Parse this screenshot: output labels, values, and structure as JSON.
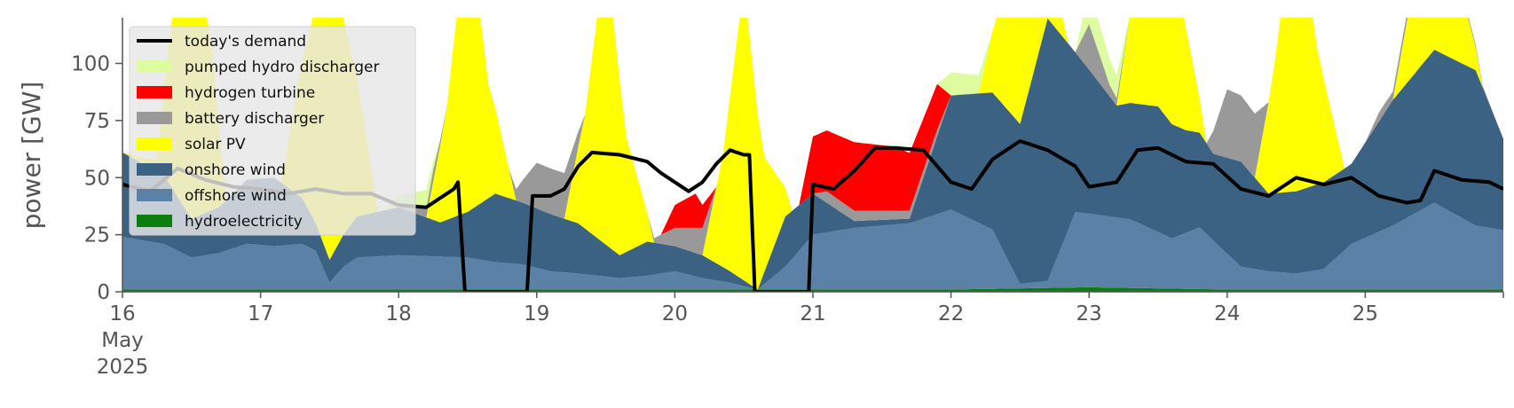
{
  "chart_data": {
    "type": "area",
    "title": "",
    "xlabel": "",
    "ylabel": "power [GW]",
    "ylim": [
      0,
      120
    ],
    "xlim_days": [
      16,
      26
    ],
    "x_unit": "days of May 2025 (fractional day)",
    "yticks": [
      0,
      25,
      50,
      75,
      100
    ],
    "xticks": [
      {
        "x": 16,
        "lines": [
          "16",
          "May",
          "2025"
        ]
      },
      {
        "x": 17,
        "lines": [
          "17"
        ]
      },
      {
        "x": 18,
        "lines": [
          "18"
        ]
      },
      {
        "x": 19,
        "lines": [
          "19"
        ]
      },
      {
        "x": 20,
        "lines": [
          "20"
        ]
      },
      {
        "x": 21,
        "lines": [
          "21"
        ]
      },
      {
        "x": 22,
        "lines": [
          "22"
        ]
      },
      {
        "x": 23,
        "lines": [
          "23"
        ]
      },
      {
        "x": 24,
        "lines": [
          "24"
        ]
      },
      {
        "x": 25,
        "lines": [
          "25"
        ]
      }
    ],
    "legend_position": "top-left",
    "legend": [
      {
        "key": "demand",
        "label": "today's demand",
        "type": "line",
        "color": "#000000"
      },
      {
        "key": "pumped",
        "label": "pumped hydro discharger",
        "type": "area",
        "color": "#ddfca0"
      },
      {
        "key": "hydrogen",
        "label": "hydrogen turbine",
        "type": "area",
        "color": "#ff0000"
      },
      {
        "key": "battery",
        "label": "battery discharger",
        "type": "area",
        "color": "#999999"
      },
      {
        "key": "solar",
        "label": "solar PV",
        "type": "area",
        "color": "#ffff00"
      },
      {
        "key": "onshore",
        "label": "onshore wind",
        "type": "area",
        "color": "#3b6183"
      },
      {
        "key": "offshore",
        "label": "offshore wind",
        "type": "area",
        "color": "#5b82a6"
      },
      {
        "key": "hydro",
        "label": "hydroelectricity",
        "type": "area",
        "color": "#0a7f10"
      }
    ],
    "stack_order": [
      "hydro",
      "offshore",
      "onshore",
      "solar",
      "battery",
      "hydrogen",
      "pumped"
    ],
    "series": {
      "hydro": [
        [
          16,
          1
        ],
        [
          18,
          1
        ],
        [
          21,
          1
        ],
        [
          22,
          1
        ],
        [
          23,
          2
        ],
        [
          24,
          1
        ],
        [
          26,
          1
        ]
      ],
      "offshore": [
        [
          16,
          23
        ],
        [
          16.3,
          20
        ],
        [
          16.5,
          14
        ],
        [
          16.7,
          16
        ],
        [
          16.9,
          20
        ],
        [
          17.1,
          19
        ],
        [
          17.3,
          20
        ],
        [
          17.4,
          17
        ],
        [
          17.5,
          3
        ],
        [
          17.6,
          10
        ],
        [
          17.7,
          14
        ],
        [
          18,
          15
        ],
        [
          18.5,
          14
        ],
        [
          18.7,
          12
        ],
        [
          18.9,
          11
        ],
        [
          19.1,
          8
        ],
        [
          19.3,
          7
        ],
        [
          19.6,
          5
        ],
        [
          19.8,
          6
        ],
        [
          20,
          8
        ],
        [
          20.2,
          5
        ],
        [
          20.4,
          3
        ],
        [
          20.6,
          0
        ],
        [
          20.8,
          10
        ],
        [
          21,
          24
        ],
        [
          21.3,
          27
        ],
        [
          21.7,
          29
        ],
        [
          22,
          35
        ],
        [
          22.3,
          26
        ],
        [
          22.5,
          2
        ],
        [
          22.7,
          3
        ],
        [
          22.9,
          33
        ],
        [
          23.3,
          30
        ],
        [
          23.6,
          22
        ],
        [
          23.8,
          27
        ],
        [
          24.1,
          10
        ],
        [
          24.3,
          8
        ],
        [
          24.5,
          7
        ],
        [
          24.7,
          9
        ],
        [
          24.9,
          20
        ],
        [
          25.2,
          28
        ],
        [
          25.5,
          38
        ],
        [
          25.8,
          28
        ],
        [
          26,
          26
        ]
      ],
      "onshore": [
        [
          16,
          37
        ],
        [
          16.3,
          30
        ],
        [
          16.5,
          17
        ],
        [
          16.7,
          20
        ],
        [
          16.9,
          28
        ],
        [
          17.1,
          30
        ],
        [
          17.3,
          20
        ],
        [
          17.4,
          12
        ],
        [
          17.5,
          10
        ],
        [
          17.7,
          18
        ],
        [
          18,
          21
        ],
        [
          18.3,
          15
        ],
        [
          18.5,
          20
        ],
        [
          18.7,
          30
        ],
        [
          18.9,
          27
        ],
        [
          19.1,
          25
        ],
        [
          19.3,
          22
        ],
        [
          19.6,
          10
        ],
        [
          19.8,
          15
        ],
        [
          20,
          11
        ],
        [
          20.2,
          10
        ],
        [
          20.4,
          5
        ],
        [
          20.6,
          0
        ],
        [
          20.8,
          22
        ],
        [
          21,
          18
        ],
        [
          21.3,
          3
        ],
        [
          21.7,
          2
        ],
        [
          22,
          50
        ],
        [
          22.3,
          60
        ],
        [
          22.5,
          70
        ],
        [
          22.7,
          115
        ],
        [
          22.9,
          70
        ],
        [
          23.2,
          49
        ],
        [
          23.5,
          55
        ],
        [
          23.7,
          45
        ],
        [
          23.9,
          38
        ],
        [
          24.1,
          46
        ],
        [
          24.3,
          34
        ],
        [
          24.5,
          36
        ],
        [
          24.7,
          38
        ],
        [
          24.9,
          35
        ],
        [
          25.2,
          55
        ],
        [
          25.5,
          67
        ],
        [
          25.8,
          68
        ],
        [
          26,
          40
        ]
      ],
      "solar": [
        [
          16,
          0
        ],
        [
          16.25,
          5
        ],
        [
          16.35,
          70
        ],
        [
          16.5,
          130
        ],
        [
          16.65,
          70
        ],
        [
          16.75,
          0
        ],
        [
          17.15,
          0
        ],
        [
          17.3,
          60
        ],
        [
          17.5,
          130
        ],
        [
          17.7,
          60
        ],
        [
          17.85,
          0
        ],
        [
          18.2,
          0
        ],
        [
          18.35,
          50
        ],
        [
          18.5,
          130
        ],
        [
          18.65,
          50
        ],
        [
          18.85,
          0
        ],
        [
          19.2,
          0
        ],
        [
          19.35,
          50
        ],
        [
          19.5,
          130
        ],
        [
          19.65,
          50
        ],
        [
          19.85,
          0
        ],
        [
          20.2,
          0
        ],
        [
          20.35,
          50
        ],
        [
          20.5,
          130
        ],
        [
          20.65,
          50
        ],
        [
          20.85,
          0
        ],
        [
          21.2,
          0
        ],
        [
          22.2,
          0
        ],
        [
          22.35,
          40
        ],
        [
          22.5,
          130
        ],
        [
          22.65,
          40
        ],
        [
          22.85,
          0
        ],
        [
          23.2,
          0
        ],
        [
          23.35,
          60
        ],
        [
          23.5,
          130
        ],
        [
          23.65,
          60
        ],
        [
          23.85,
          0
        ],
        [
          24.2,
          0
        ],
        [
          24.35,
          60
        ],
        [
          24.5,
          130
        ],
        [
          24.65,
          60
        ],
        [
          24.85,
          0
        ],
        [
          25.2,
          0
        ],
        [
          25.35,
          40
        ],
        [
          25.5,
          130
        ],
        [
          25.65,
          40
        ],
        [
          25.85,
          0
        ],
        [
          26,
          0
        ]
      ],
      "battery": [
        [
          16,
          0
        ],
        [
          18,
          0
        ],
        [
          18.25,
          5
        ],
        [
          18.35,
          0
        ],
        [
          18.8,
          0
        ],
        [
          19,
          20
        ],
        [
          19.2,
          20
        ],
        [
          19.35,
          0
        ],
        [
          19.8,
          0
        ],
        [
          20,
          8
        ],
        [
          20.2,
          12
        ],
        [
          20.3,
          0
        ],
        [
          21,
          0
        ],
        [
          21.1,
          5
        ],
        [
          21.5,
          4
        ],
        [
          21.9,
          3
        ],
        [
          22,
          0
        ],
        [
          22.9,
          0
        ],
        [
          23,
          20
        ],
        [
          23.15,
          5
        ],
        [
          23.3,
          0
        ],
        [
          23.85,
          0
        ],
        [
          24,
          30
        ],
        [
          24.2,
          28
        ],
        [
          24.3,
          0
        ],
        [
          25,
          0
        ],
        [
          25.1,
          4
        ],
        [
          25.4,
          3
        ],
        [
          26,
          0
        ]
      ],
      "hydrogen": [
        [
          16,
          0
        ],
        [
          19.9,
          0
        ],
        [
          20,
          10
        ],
        [
          20.15,
          15
        ],
        [
          20.3,
          0
        ],
        [
          20.9,
          0
        ],
        [
          21,
          25
        ],
        [
          21.3,
          30
        ],
        [
          21.6,
          28
        ],
        [
          21.9,
          20
        ],
        [
          22,
          0
        ],
        [
          26,
          0
        ]
      ],
      "pumped": [
        [
          16,
          0
        ],
        [
          17.9,
          0
        ],
        [
          18,
          5
        ],
        [
          18.2,
          8
        ],
        [
          18.3,
          0
        ],
        [
          21.9,
          0
        ],
        [
          22,
          10
        ],
        [
          22.2,
          8
        ],
        [
          22.3,
          0
        ],
        [
          22.9,
          0
        ],
        [
          23,
          15
        ],
        [
          23.2,
          10
        ],
        [
          23.3,
          0
        ],
        [
          26,
          0
        ]
      ],
      "demand": [
        [
          16,
          47
        ],
        [
          16.2,
          44
        ],
        [
          16.4,
          54
        ],
        [
          16.6,
          49
        ],
        [
          16.8,
          46
        ],
        [
          17,
          45
        ],
        [
          17.2,
          43
        ],
        [
          17.4,
          45
        ],
        [
          17.6,
          43
        ],
        [
          17.8,
          43
        ],
        [
          18,
          38
        ],
        [
          18.2,
          37
        ],
        [
          18.4,
          45
        ],
        [
          18.43,
          48
        ],
        [
          18.48,
          0
        ],
        [
          18.93,
          0
        ],
        [
          18.97,
          42
        ],
        [
          19.1,
          42
        ],
        [
          19.2,
          45
        ],
        [
          19.3,
          55
        ],
        [
          19.4,
          61
        ],
        [
          19.6,
          60
        ],
        [
          19.8,
          57
        ],
        [
          19.9,
          52
        ],
        [
          20.1,
          44
        ],
        [
          20.2,
          48
        ],
        [
          20.3,
          56
        ],
        [
          20.4,
          62
        ],
        [
          20.5,
          60
        ],
        [
          20.54,
          60
        ],
        [
          20.58,
          0
        ],
        [
          20.97,
          0
        ],
        [
          21,
          47
        ],
        [
          21.15,
          45
        ],
        [
          21.3,
          53
        ],
        [
          21.45,
          63
        ],
        [
          21.6,
          63
        ],
        [
          21.8,
          62
        ],
        [
          22,
          48
        ],
        [
          22.15,
          45
        ],
        [
          22.3,
          58
        ],
        [
          22.5,
          66
        ],
        [
          22.7,
          62
        ],
        [
          22.9,
          55
        ],
        [
          23,
          46
        ],
        [
          23.2,
          48
        ],
        [
          23.35,
          62
        ],
        [
          23.5,
          63
        ],
        [
          23.7,
          57
        ],
        [
          23.9,
          56
        ],
        [
          24.1,
          45
        ],
        [
          24.3,
          42
        ],
        [
          24.5,
          50
        ],
        [
          24.7,
          47
        ],
        [
          24.9,
          50
        ],
        [
          25.1,
          42
        ],
        [
          25.3,
          39
        ],
        [
          25.4,
          40
        ],
        [
          25.5,
          53
        ],
        [
          25.7,
          49
        ],
        [
          25.9,
          48
        ],
        [
          26,
          45
        ]
      ]
    }
  }
}
